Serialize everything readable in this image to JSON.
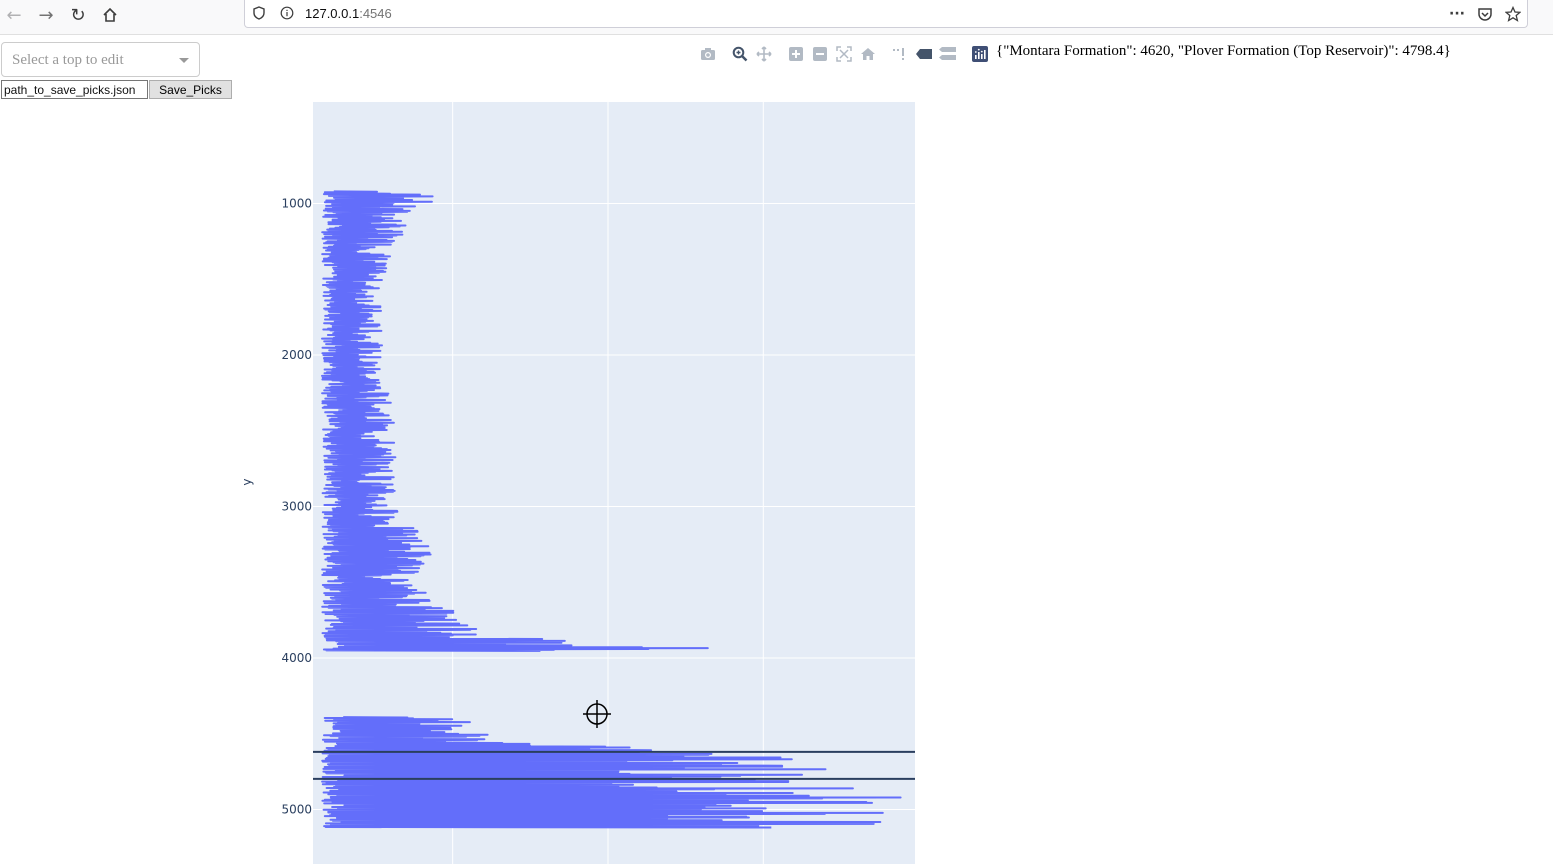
{
  "browser": {
    "url_host": "127.0.0.1",
    "url_port": ":4546"
  },
  "controls": {
    "dropdown_placeholder": "Select a top to edit",
    "path_value": "path_to_save_picks.json",
    "save_label": "Save_Picks"
  },
  "picks_output": "{\"Montara Formation\": 4620, \"Plover Formation (Top Reservoir)\": 4798.4}",
  "modebar_icons": [
    "camera-icon",
    "zoom-icon",
    "pan-icon",
    "zoom-in-icon",
    "zoom-out-icon",
    "autoscale-icon",
    "reset-axes-icon",
    "spike-lines-icon",
    "hover-closest-icon",
    "hover-compare-icon",
    "plotly-logo-icon"
  ],
  "colors": {
    "trace": "#636efa",
    "plot_bg": "#e5ecf6",
    "grid": "#ffffff",
    "tops_line": "#2a3f5f"
  },
  "chart_data": {
    "type": "line",
    "xlabel": "",
    "ylabel": "y",
    "yaxis_reversed": true,
    "yticks": [
      1000,
      2000,
      3000,
      4000,
      5000
    ],
    "ylim": [
      5360,
      330
    ],
    "grid": true,
    "formation_tops": [
      {
        "name": "Montara Formation",
        "depth": 4620
      },
      {
        "name": "Plover Formation (Top Reservoir)",
        "depth": 4798.4
      }
    ],
    "series": [
      {
        "segments": [
          {
            "depth_from": 920,
            "depth_to": 3950,
            "profile": [
              [
                920,
                0.12
              ],
              [
                960,
                0.22
              ],
              [
                1000,
                0.15
              ],
              [
                1500,
                0.1
              ],
              [
                2000,
                0.1
              ],
              [
                2500,
                0.12
              ],
              [
                3000,
                0.12
              ],
              [
                3300,
                0.18
              ],
              [
                3500,
                0.14
              ],
              [
                3700,
                0.22
              ],
              [
                3800,
                0.25
              ],
              [
                3900,
                0.4
              ],
              [
                3930,
                0.65
              ]
            ]
          },
          {
            "depth_from": 4390,
            "depth_to": 5120,
            "profile": [
              [
                4390,
                0.25
              ],
              [
                4450,
                0.22
              ],
              [
                4550,
                0.3
              ],
              [
                4620,
                0.6
              ],
              [
                4700,
                0.85
              ],
              [
                4780,
                0.7
              ],
              [
                4850,
                0.8
              ],
              [
                4950,
                0.9
              ],
              [
                5050,
                0.85
              ],
              [
                5110,
                0.8
              ]
            ]
          }
        ]
      }
    ]
  }
}
